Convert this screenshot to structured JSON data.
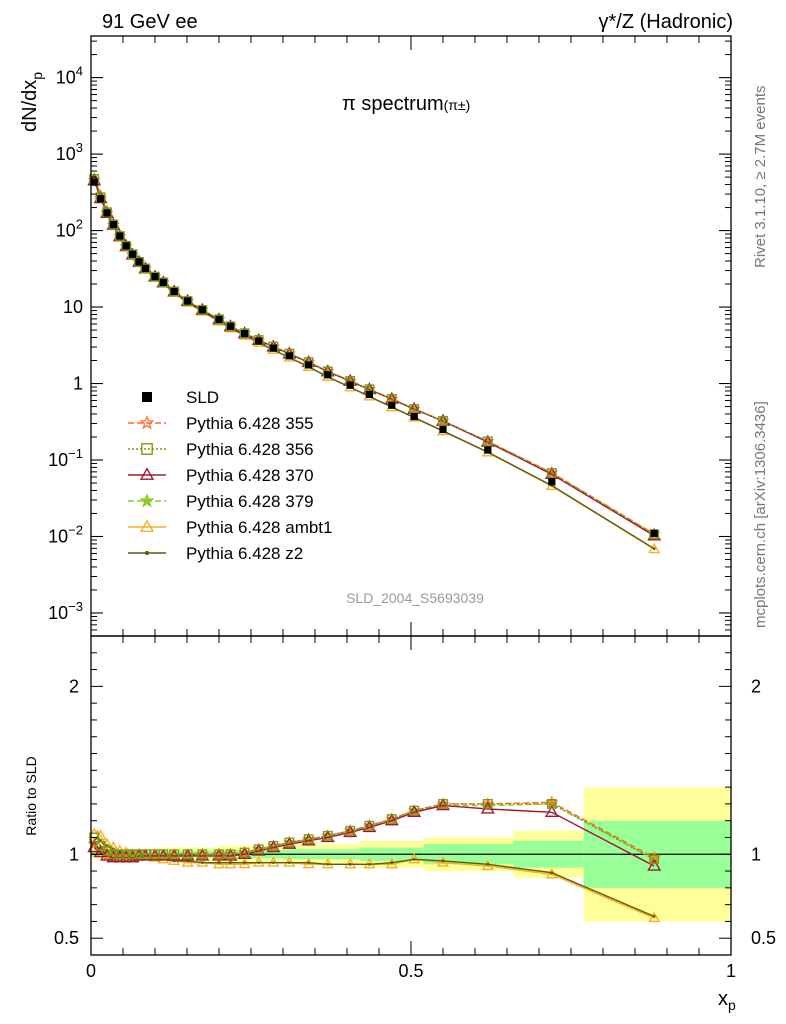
{
  "header": {
    "left": "91 GeV ee",
    "right": "γ*/Z (Hadronic)"
  },
  "side_labels": {
    "rivet": "Rivet 3.1.10, ≥ 2.7M events",
    "mcplots": "mcplots.cern.ch [arXiv:1306.3436]"
  },
  "chart_data": {
    "type": "line",
    "title": "π spectrum",
    "title_sub": "(π±)",
    "watermark": "SLD_2004_S5693039",
    "xlabel": "x",
    "xlabel_sub": "p",
    "ylabel": "dN/dx",
    "ylabel_sub": "p",
    "ratio_ylabel": "Ratio to SLD",
    "xlim": [
      0,
      1
    ],
    "ylim": [
      0.0005,
      35000
    ],
    "yscale": "log",
    "ratio_ylim": [
      0.4,
      2.3
    ],
    "x_ticks": [
      {
        "v": 0,
        "label": "0"
      },
      {
        "v": 0.5,
        "label": "0.5"
      },
      {
        "v": 1,
        "label": "1"
      }
    ],
    "y_ticks": [
      {
        "exp": -3,
        "base": "10",
        "sup": "−3"
      },
      {
        "exp": -2,
        "base": "10",
        "sup": "−2"
      },
      {
        "exp": -1,
        "base": "10",
        "sup": "−1"
      },
      {
        "exp": 0,
        "base": "1",
        "sup": ""
      },
      {
        "exp": 1,
        "base": "10",
        "sup": ""
      },
      {
        "exp": 2,
        "base": "10",
        "sup": "2"
      },
      {
        "exp": 3,
        "base": "10",
        "sup": "3"
      },
      {
        "exp": 4,
        "base": "10",
        "sup": "4"
      }
    ],
    "ratio_ticks": [
      {
        "v": 0.5,
        "label": "0.5"
      },
      {
        "v": 1,
        "label": "1"
      },
      {
        "v": 2,
        "label": "2"
      }
    ],
    "x": [
      0.005,
      0.01,
      0.015,
      0.02,
      0.025,
      0.03,
      0.035,
      0.04,
      0.045,
      0.05,
      0.055,
      0.06,
      0.065,
      0.07,
      0.075,
      0.08,
      0.085,
      0.09,
      0.1,
      0.113,
      0.13,
      0.151,
      0.174,
      0.2,
      0.218,
      0.24,
      0.262,
      0.285,
      0.31,
      0.34,
      0.37,
      0.405,
      0.435,
      0.47,
      0.505,
      0.55,
      0.62,
      0.72,
      0.88
    ],
    "data": [
      430,
      340,
      260,
      210,
      170,
      140,
      120,
      100,
      85,
      73,
      63,
      55,
      49,
      44,
      39,
      35,
      32,
      29,
      25,
      21,
      16,
      12,
      9.2,
      6.9,
      5.6,
      4.5,
      3.6,
      2.9,
      2.3,
      1.75,
      1.3,
      0.95,
      0.72,
      0.52,
      0.37,
      0.25,
      0.135,
      0.052,
      0.011
    ],
    "bands": [
      {
        "x0": 0,
        "x1": 0.1,
        "inner": 0.015,
        "outer": 0.03
      },
      {
        "x0": 0.1,
        "x1": 0.2,
        "inner": 0.02,
        "outer": 0.04
      },
      {
        "x0": 0.2,
        "x1": 0.3,
        "inner": 0.025,
        "outer": 0.05
      },
      {
        "x0": 0.3,
        "x1": 0.42,
        "inner": 0.03,
        "outer": 0.06
      },
      {
        "x0": 0.42,
        "x1": 0.52,
        "inner": 0.04,
        "outer": 0.08
      },
      {
        "x0": 0.52,
        "x1": 0.66,
        "inner": 0.06,
        "outer": 0.1
      },
      {
        "x0": 0.66,
        "x1": 0.77,
        "inner": 0.08,
        "outer": 0.14
      },
      {
        "x0": 0.77,
        "x1": 1.0,
        "inner": 0.2,
        "outer": 0.4
      }
    ],
    "series": [
      {
        "name": "SLD",
        "color": "#000000",
        "marker": "square",
        "dash": "",
        "ratio": []
      },
      {
        "name": "Pythia 6.428 355",
        "color": "#ff6a1f",
        "marker": "star",
        "dash": "6,3",
        "ratio": [
          1.06,
          1.04,
          1.02,
          1.0,
          0.99,
          0.98,
          0.98,
          0.98,
          0.98,
          0.98,
          0.98,
          0.98,
          0.98,
          0.98,
          0.99,
          0.99,
          0.99,
          0.99,
          0.99,
          0.99,
          0.99,
          0.99,
          1.0,
          1.0,
          1.0,
          1.01,
          1.03,
          1.05,
          1.07,
          1.09,
          1.11,
          1.14,
          1.17,
          1.21,
          1.26,
          1.3,
          1.3,
          1.31,
          0.98
        ]
      },
      {
        "name": "Pythia 6.428 356",
        "color": "#7a9a1a",
        "marker": "opensquare",
        "dash": "2,2",
        "ratio": [
          1.1,
          1.07,
          1.05,
          1.03,
          1.02,
          1.01,
          1.0,
          1.0,
          1.0,
          1.0,
          1.0,
          1.0,
          1.0,
          1.0,
          1.0,
          1.0,
          1.0,
          1.0,
          1.0,
          1.0,
          1.0,
          1.0,
          1.0,
          1.0,
          1.0,
          1.01,
          1.03,
          1.05,
          1.07,
          1.09,
          1.11,
          1.14,
          1.17,
          1.21,
          1.26,
          1.3,
          1.3,
          1.3,
          0.97
        ]
      },
      {
        "name": "Pythia 6.428 370",
        "color": "#a01830",
        "marker": "triangle",
        "dash": "",
        "ratio": [
          1.04,
          1.02,
          1.01,
          1.0,
          0.99,
          0.98,
          0.98,
          0.98,
          0.98,
          0.98,
          0.98,
          0.98,
          0.98,
          0.98,
          0.99,
          0.99,
          0.99,
          0.99,
          0.99,
          0.99,
          0.99,
          0.99,
          0.99,
          0.99,
          0.99,
          1.0,
          1.02,
          1.04,
          1.06,
          1.08,
          1.1,
          1.13,
          1.16,
          1.2,
          1.25,
          1.29,
          1.27,
          1.25,
          0.93
        ]
      },
      {
        "name": "Pythia 6.428 379",
        "color": "#8ccc2a",
        "marker": "filledstar",
        "dash": "6,3",
        "ratio": [
          1.06,
          1.05,
          1.03,
          1.02,
          1.01,
          1.0,
          1.0,
          1.0,
          0.99,
          0.99,
          0.99,
          0.99,
          0.99,
          0.99,
          0.99,
          0.99,
          0.99,
          0.99,
          0.99,
          0.99,
          0.99,
          0.99,
          1.0,
          1.0,
          1.0,
          1.01,
          1.03,
          1.05,
          1.07,
          1.09,
          1.11,
          1.14,
          1.17,
          1.21,
          1.26,
          1.29,
          1.29,
          1.3,
          0.97
        ]
      },
      {
        "name": "Pythia 6.428 ambt1",
        "color": "#f5b020",
        "marker": "opentriangle",
        "dash": "",
        "ratio": [
          1.12,
          1.14,
          1.11,
          1.08,
          1.06,
          1.05,
          1.04,
          1.03,
          1.02,
          1.02,
          1.01,
          1.01,
          1.0,
          1.0,
          1.0,
          1.0,
          0.99,
          0.99,
          0.98,
          0.97,
          0.96,
          0.95,
          0.95,
          0.94,
          0.94,
          0.94,
          0.95,
          0.95,
          0.95,
          0.94,
          0.94,
          0.94,
          0.94,
          0.94,
          0.97,
          0.95,
          0.93,
          0.88,
          0.62
        ]
      },
      {
        "name": "Pythia 6.428 z2",
        "color": "#5e5a10",
        "marker": "dot",
        "dash": "",
        "ratio": [
          1.08,
          1.1,
          1.08,
          1.06,
          1.05,
          1.04,
          1.03,
          1.02,
          1.02,
          1.01,
          1.01,
          1.0,
          1.0,
          1.0,
          1.0,
          0.99,
          0.99,
          0.99,
          0.98,
          0.97,
          0.96,
          0.96,
          0.95,
          0.95,
          0.95,
          0.95,
          0.95,
          0.95,
          0.95,
          0.95,
          0.94,
          0.94,
          0.94,
          0.95,
          0.97,
          0.96,
          0.94,
          0.89,
          0.63
        ]
      }
    ]
  }
}
